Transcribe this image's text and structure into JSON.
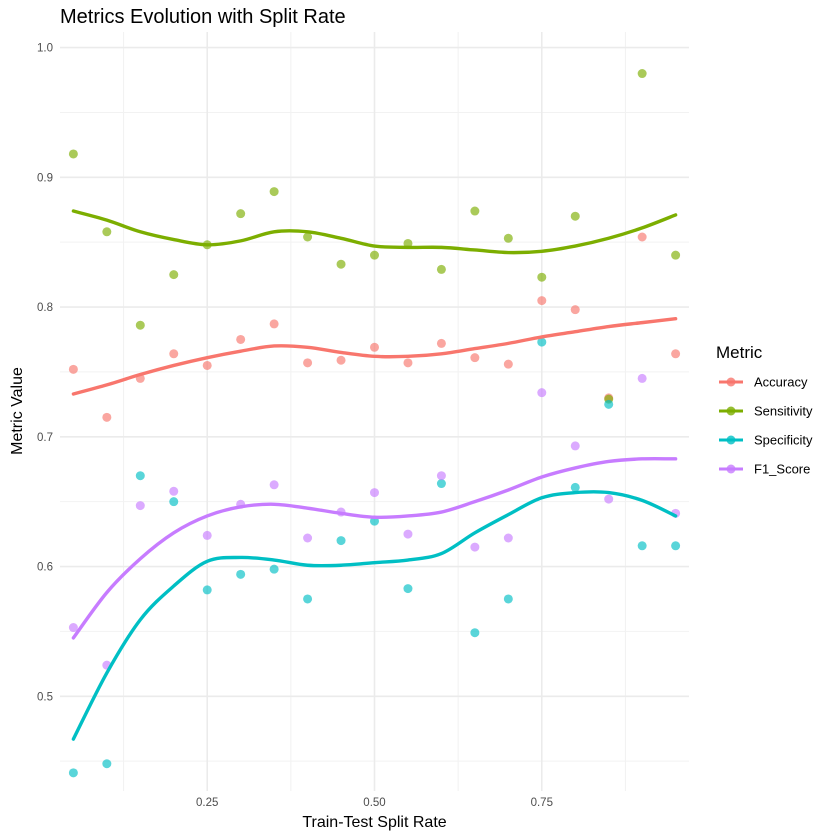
{
  "chart_data": {
    "type": "scatter",
    "title": "Metrics Evolution with Split Rate",
    "xlabel": "Train-Test Split Rate",
    "ylabel": "Metric Value",
    "xlim": [
      0.03,
      0.97
    ],
    "ylim": [
      0.427,
      1.012
    ],
    "x_ticks": [
      0.25,
      0.5,
      0.75
    ],
    "x_tick_labels": [
      "0.25",
      "0.50",
      "0.75"
    ],
    "y_ticks": [
      0.5,
      0.6,
      0.7,
      0.8,
      0.9,
      1.0
    ],
    "y_tick_labels": [
      "0.5",
      "0.6",
      "0.7",
      "0.8",
      "0.9",
      "1.0"
    ],
    "grid": true,
    "legend_title": "Metric",
    "legend_position": "right",
    "smoothing": "loess",
    "x": [
      0.05,
      0.1,
      0.15,
      0.2,
      0.25,
      0.3,
      0.35,
      0.4,
      0.45,
      0.5,
      0.55,
      0.6,
      0.65,
      0.7,
      0.75,
      0.8,
      0.85,
      0.9,
      0.95
    ],
    "series": [
      {
        "name": "Accuracy",
        "color": "#F8766D",
        "values": [
          0.752,
          0.715,
          0.745,
          0.764,
          0.755,
          0.775,
          0.787,
          0.757,
          0.759,
          0.769,
          0.757,
          0.772,
          0.761,
          0.756,
          0.805,
          0.798,
          0.73,
          0.854,
          0.764
        ],
        "trend": [
          0.733,
          0.74,
          0.748,
          0.755,
          0.761,
          0.766,
          0.77,
          0.769,
          0.765,
          0.762,
          0.762,
          0.764,
          0.768,
          0.772,
          0.777,
          0.781,
          0.785,
          0.788,
          0.791
        ]
      },
      {
        "name": "Sensitivity",
        "color": "#7CAE00",
        "values": [
          0.918,
          0.858,
          0.786,
          0.825,
          0.848,
          0.872,
          0.889,
          0.854,
          0.833,
          0.84,
          0.849,
          0.829,
          0.874,
          0.853,
          0.823,
          0.87,
          0.729,
          0.98,
          0.84
        ],
        "trend": [
          0.874,
          0.867,
          0.858,
          0.852,
          0.848,
          0.851,
          0.858,
          0.858,
          0.853,
          0.847,
          0.846,
          0.846,
          0.844,
          0.842,
          0.843,
          0.847,
          0.853,
          0.861,
          0.871
        ]
      },
      {
        "name": "Specificity",
        "color": "#00BFC4",
        "values": [
          0.441,
          0.448,
          0.67,
          0.65,
          0.582,
          0.594,
          0.598,
          0.575,
          0.62,
          0.635,
          0.583,
          0.664,
          0.549,
          0.575,
          0.773,
          0.661,
          0.725,
          0.616,
          0.616
        ],
        "trend": [
          0.467,
          0.518,
          0.559,
          0.585,
          0.604,
          0.607,
          0.605,
          0.601,
          0.601,
          0.603,
          0.605,
          0.61,
          0.626,
          0.64,
          0.653,
          0.657,
          0.657,
          0.651,
          0.639
        ]
      },
      {
        "name": "F1_Score",
        "color": "#C77CFF",
        "values": [
          0.553,
          0.524,
          0.647,
          0.658,
          0.624,
          0.648,
          0.663,
          0.622,
          0.642,
          0.657,
          0.625,
          0.67,
          0.615,
          0.622,
          0.734,
          0.693,
          0.652,
          0.745,
          0.641
        ],
        "trend": [
          0.545,
          0.58,
          0.606,
          0.626,
          0.639,
          0.646,
          0.648,
          0.645,
          0.641,
          0.638,
          0.639,
          0.642,
          0.65,
          0.659,
          0.669,
          0.676,
          0.681,
          0.683,
          0.683
        ]
      }
    ]
  }
}
